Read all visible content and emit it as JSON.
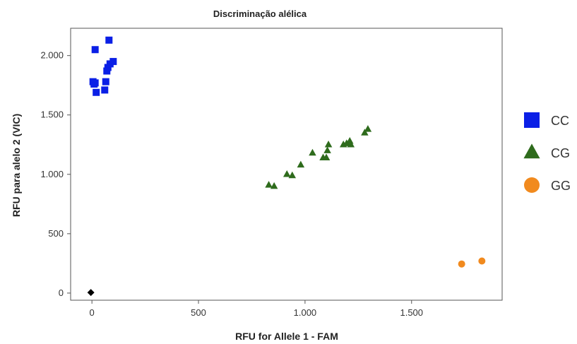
{
  "chart_data": {
    "type": "scatter",
    "title": "Discriminação alélica",
    "xlabel": "RFU for Allele 1 - FAM",
    "ylabel": "RFU para alelo 2 (VIC)",
    "xlim": [
      -100,
      1925
    ],
    "ylim": [
      -60,
      2230
    ],
    "xticks": [
      0,
      500,
      1000,
      1500
    ],
    "xtick_labels": [
      "0",
      "500",
      "1.000",
      "1.500"
    ],
    "yticks": [
      0,
      500,
      1000,
      1500,
      2000
    ],
    "ytick_labels": [
      "0",
      "500",
      "1.000",
      "1.500",
      "2.000"
    ],
    "grid": false,
    "legend_position": "right",
    "series": [
      {
        "name": "CC",
        "marker": "square",
        "color": "#0a1fe6",
        "points": [
          [
            15,
            2050
          ],
          [
            80,
            2130
          ],
          [
            5,
            1780
          ],
          [
            15,
            1770
          ],
          [
            10,
            1760
          ],
          [
            20,
            1690
          ],
          [
            65,
            1780
          ],
          [
            60,
            1710
          ],
          [
            75,
            1900
          ],
          [
            85,
            1930
          ],
          [
            100,
            1950
          ],
          [
            70,
            1870
          ]
        ]
      },
      {
        "name": "CG",
        "marker": "triangle",
        "color": "#2e6b1c",
        "points": [
          [
            830,
            910
          ],
          [
            855,
            900
          ],
          [
            915,
            1000
          ],
          [
            940,
            990
          ],
          [
            980,
            1080
          ],
          [
            1035,
            1180
          ],
          [
            1085,
            1140
          ],
          [
            1100,
            1140
          ],
          [
            1105,
            1200
          ],
          [
            1110,
            1250
          ],
          [
            1180,
            1250
          ],
          [
            1195,
            1260
          ],
          [
            1210,
            1280
          ],
          [
            1215,
            1250
          ],
          [
            1280,
            1350
          ],
          [
            1295,
            1380
          ]
        ]
      },
      {
        "name": "GG",
        "marker": "circle",
        "color": "#f18a1e",
        "points": [
          [
            1735,
            245
          ],
          [
            1830,
            270
          ]
        ]
      },
      {
        "name": "",
        "marker": "diamond",
        "color": "#000000",
        "points": [
          [
            -5,
            5
          ]
        ]
      }
    ]
  }
}
